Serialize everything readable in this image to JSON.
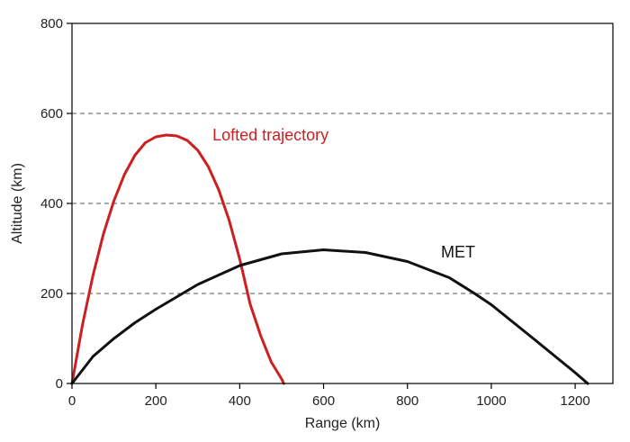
{
  "chart_data": {
    "type": "line",
    "xlabel": "Range (km)",
    "ylabel": "Altitude (km)",
    "xlim": [
      0,
      1290
    ],
    "ylim": [
      0,
      800
    ],
    "xticks": [
      0,
      200,
      400,
      600,
      800,
      1000,
      1200
    ],
    "yticks": [
      0,
      200,
      400,
      600,
      800
    ],
    "grid": "dashed horizontal lines at 200, 400, 600",
    "series": [
      {
        "name": "Lofted trajectory",
        "color": "#cc2020",
        "x": [
          0,
          25,
          50,
          75,
          100,
          125,
          150,
          175,
          200,
          225,
          250,
          275,
          300,
          325,
          350,
          375,
          400,
          425,
          450,
          475,
          500,
          505
        ],
        "y": [
          0,
          130,
          240,
          332,
          406,
          464,
          507,
          535,
          548,
          552,
          550,
          540,
          518,
          482,
          430,
          362,
          276,
          176,
          106,
          48,
          10,
          0
        ]
      },
      {
        "name": "MET",
        "color": "#111111",
        "x": [
          0,
          50,
          100,
          150,
          200,
          300,
          400,
          500,
          600,
          700,
          800,
          900,
          960,
          1000,
          1100,
          1150,
          1200,
          1230
        ],
        "y": [
          0,
          60,
          100,
          135,
          165,
          220,
          262,
          288,
          297,
          291,
          271,
          235,
          200,
          175,
          100,
          62,
          24,
          0
        ]
      }
    ],
    "annotations": [
      {
        "text": "Lofted trajectory",
        "x": 335,
        "y": 540,
        "color": "#cc2020"
      },
      {
        "text": "MET",
        "x": 880,
        "y": 280,
        "color": "#111111"
      }
    ]
  }
}
